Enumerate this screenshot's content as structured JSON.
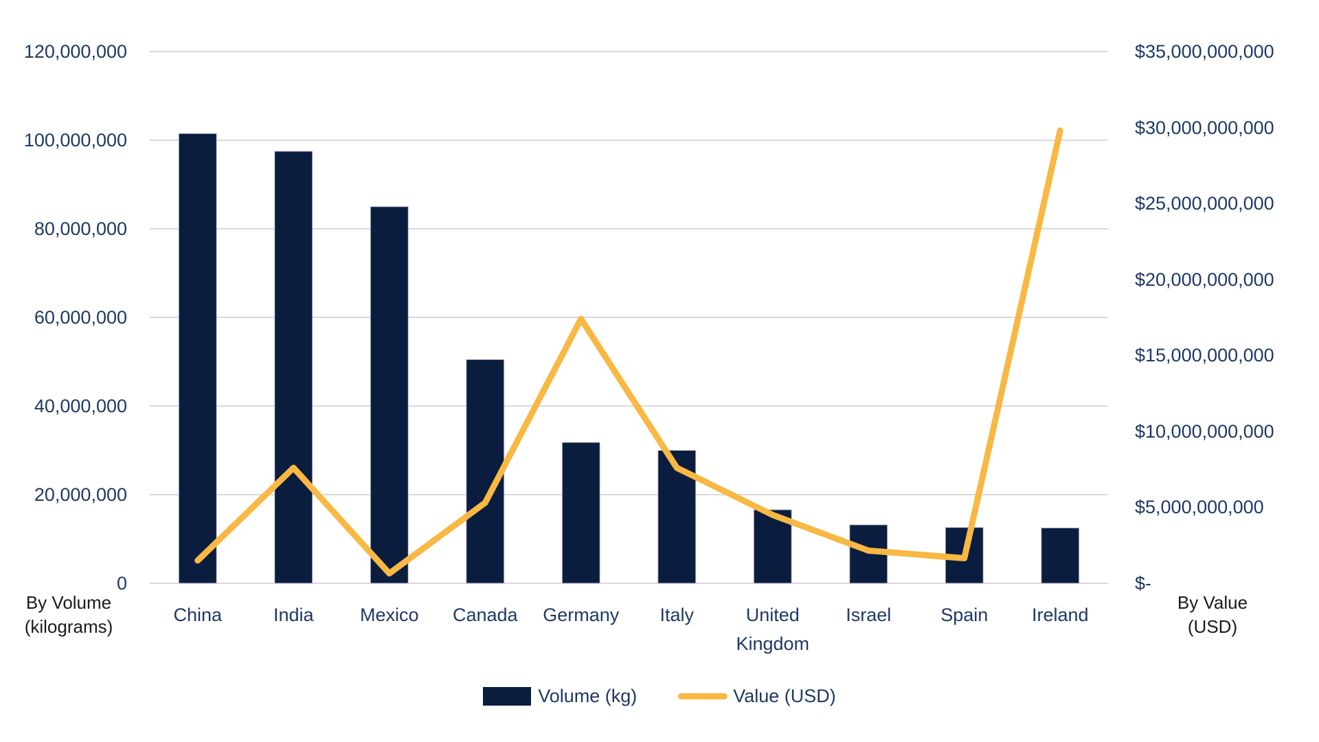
{
  "chart_data": {
    "type": "bar",
    "subtype": "combo-bar-line-dual-axis",
    "categories": [
      "China",
      "India",
      "Mexico",
      "Canada",
      "Germany",
      "Italy",
      "United Kingdom",
      "Israel",
      "Spain",
      "Ireland"
    ],
    "series": [
      {
        "name": "Volume (kg)",
        "type": "bar",
        "axis": "left",
        "color": "#0A1D3F",
        "values": [
          101500000,
          97500000,
          85000000,
          50500000,
          31800000,
          30000000,
          16600000,
          13200000,
          12600000,
          12500000
        ]
      },
      {
        "name": "Value (USD)",
        "type": "line",
        "axis": "right",
        "color": "#F8B843",
        "values": [
          1500000000,
          7600000000,
          650000000,
          5300000000,
          17400000000,
          7600000000,
          4500000000,
          2150000000,
          1650000000,
          29800000000
        ]
      }
    ],
    "left_axis": {
      "title": "By Volume (kilograms)",
      "min": 0,
      "max": 120000000,
      "tick_step": 20000000,
      "tick_labels": [
        "120,000,000",
        "100,000,000",
        "80,000,000",
        "60,000,000",
        "40,000,000",
        "20,000,000",
        "0"
      ]
    },
    "right_axis": {
      "title": "By Value (USD)",
      "min": 0,
      "max": 35000000000,
      "tick_step": 5000000000,
      "tick_labels": [
        "$35,000,000,000",
        "$30,000,000,000",
        "$25,000,000,000",
        "$20,000,000,000",
        "$15,000,000,000",
        "$10,000,000,000",
        "$5,000,000,000",
        "$-"
      ]
    },
    "grid": "horizontal",
    "gridline_color": "#D9D9D9",
    "legend_position": "bottom",
    "background": "#FFFFFF",
    "text_color": "#1F3864"
  },
  "axis_titles": {
    "left_line1": "By Volume",
    "left_line2": "(kilograms)",
    "right_line1": "By Value",
    "right_line2": "(USD)"
  }
}
